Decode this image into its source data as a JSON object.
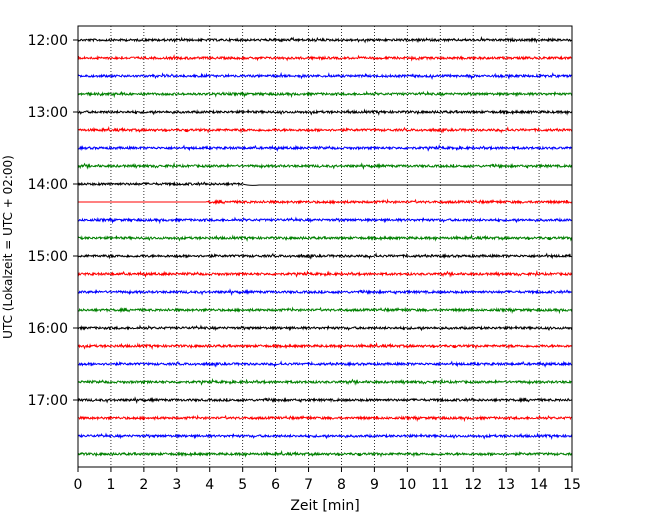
{
  "chart_data": {
    "type": "line",
    "title": "",
    "xlabel": "Zeit  [min]",
    "ylabel": "UTC (Lokalzeit = UTC + 02:00)",
    "xlim": [
      0,
      15
    ],
    "x_ticks": [
      "0",
      "1",
      "2",
      "3",
      "4",
      "5",
      "6",
      "7",
      "8",
      "9",
      "10",
      "11",
      "12",
      "13",
      "14",
      "15"
    ],
    "y_ticks": [
      "12:00",
      "13:00",
      "14:00",
      "15:00",
      "16:00",
      "17:00"
    ],
    "grid_x": true,
    "trace_colors": [
      "#000000",
      "#ff0000",
      "#0000ff",
      "#008000"
    ],
    "series": [
      {
        "start": "12:00",
        "color": "#000000"
      },
      {
        "start": "12:15",
        "color": "#ff0000"
      },
      {
        "start": "12:30",
        "color": "#0000ff"
      },
      {
        "start": "12:45",
        "color": "#008000"
      },
      {
        "start": "13:00",
        "color": "#000000"
      },
      {
        "start": "13:15",
        "color": "#ff0000"
      },
      {
        "start": "13:30",
        "color": "#0000ff"
      },
      {
        "start": "13:45",
        "color": "#008000"
      },
      {
        "start": "14:00",
        "color": "#000000",
        "gap_after_min": 5.0
      },
      {
        "start": "14:15",
        "color": "#ff0000",
        "gap_before_min": 3.9
      },
      {
        "start": "14:30",
        "color": "#0000ff"
      },
      {
        "start": "14:45",
        "color": "#008000"
      },
      {
        "start": "15:00",
        "color": "#000000"
      },
      {
        "start": "15:15",
        "color": "#ff0000"
      },
      {
        "start": "15:30",
        "color": "#0000ff"
      },
      {
        "start": "15:45",
        "color": "#008000"
      },
      {
        "start": "16:00",
        "color": "#000000"
      },
      {
        "start": "16:15",
        "color": "#ff0000"
      },
      {
        "start": "16:30",
        "color": "#0000ff"
      },
      {
        "start": "16:45",
        "color": "#008000"
      },
      {
        "start": "17:00",
        "color": "#000000"
      },
      {
        "start": "17:15",
        "color": "#ff0000"
      },
      {
        "start": "17:30",
        "color": "#0000ff"
      },
      {
        "start": "17:45",
        "color": "#008000"
      }
    ]
  }
}
